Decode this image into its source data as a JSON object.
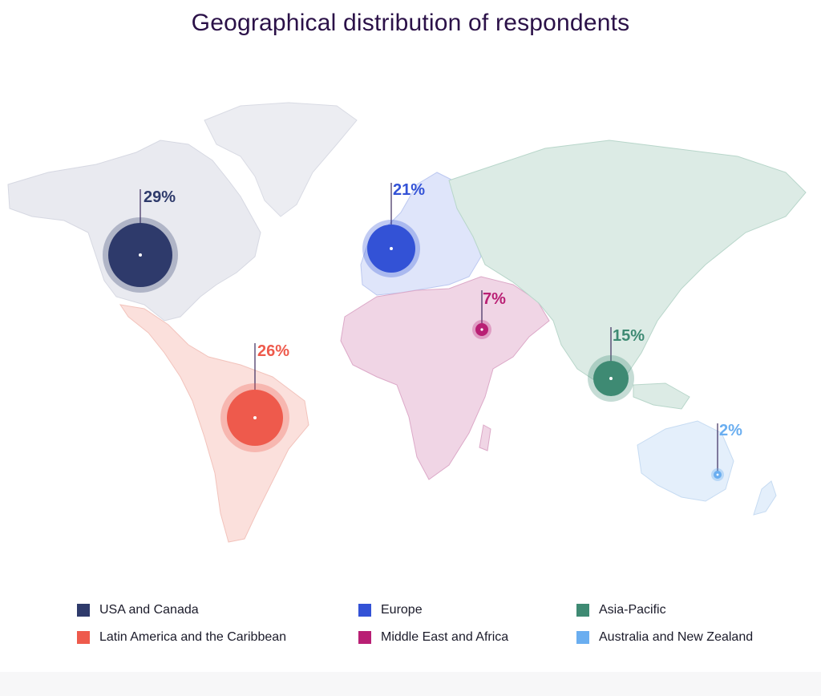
{
  "title": "Geographical distribution of respondents",
  "colors": {
    "usa_canada": "#2e3a6b",
    "latam": "#ee5a4c",
    "europe": "#3352d6",
    "mea": "#b91f74",
    "apac": "#3e8a73",
    "anz": "#6aaef0"
  },
  "regions": [
    {
      "id": "usa_canada",
      "label": "USA and Canada",
      "percent": "29%",
      "value": 29
    },
    {
      "id": "latam",
      "label": "Latin America and the Caribbean",
      "percent": "26%",
      "value": 26
    },
    {
      "id": "europe",
      "label": "Europe",
      "percent": "21%",
      "value": 21
    },
    {
      "id": "mea",
      "label": "Middle East and Africa",
      "percent": "7%",
      "value": 7
    },
    {
      "id": "apac",
      "label": "Asia-Pacific",
      "percent": "15%",
      "value": 15
    },
    {
      "id": "anz",
      "label": "Australia and New Zealand",
      "percent": "2%",
      "value": 2
    }
  ]
}
